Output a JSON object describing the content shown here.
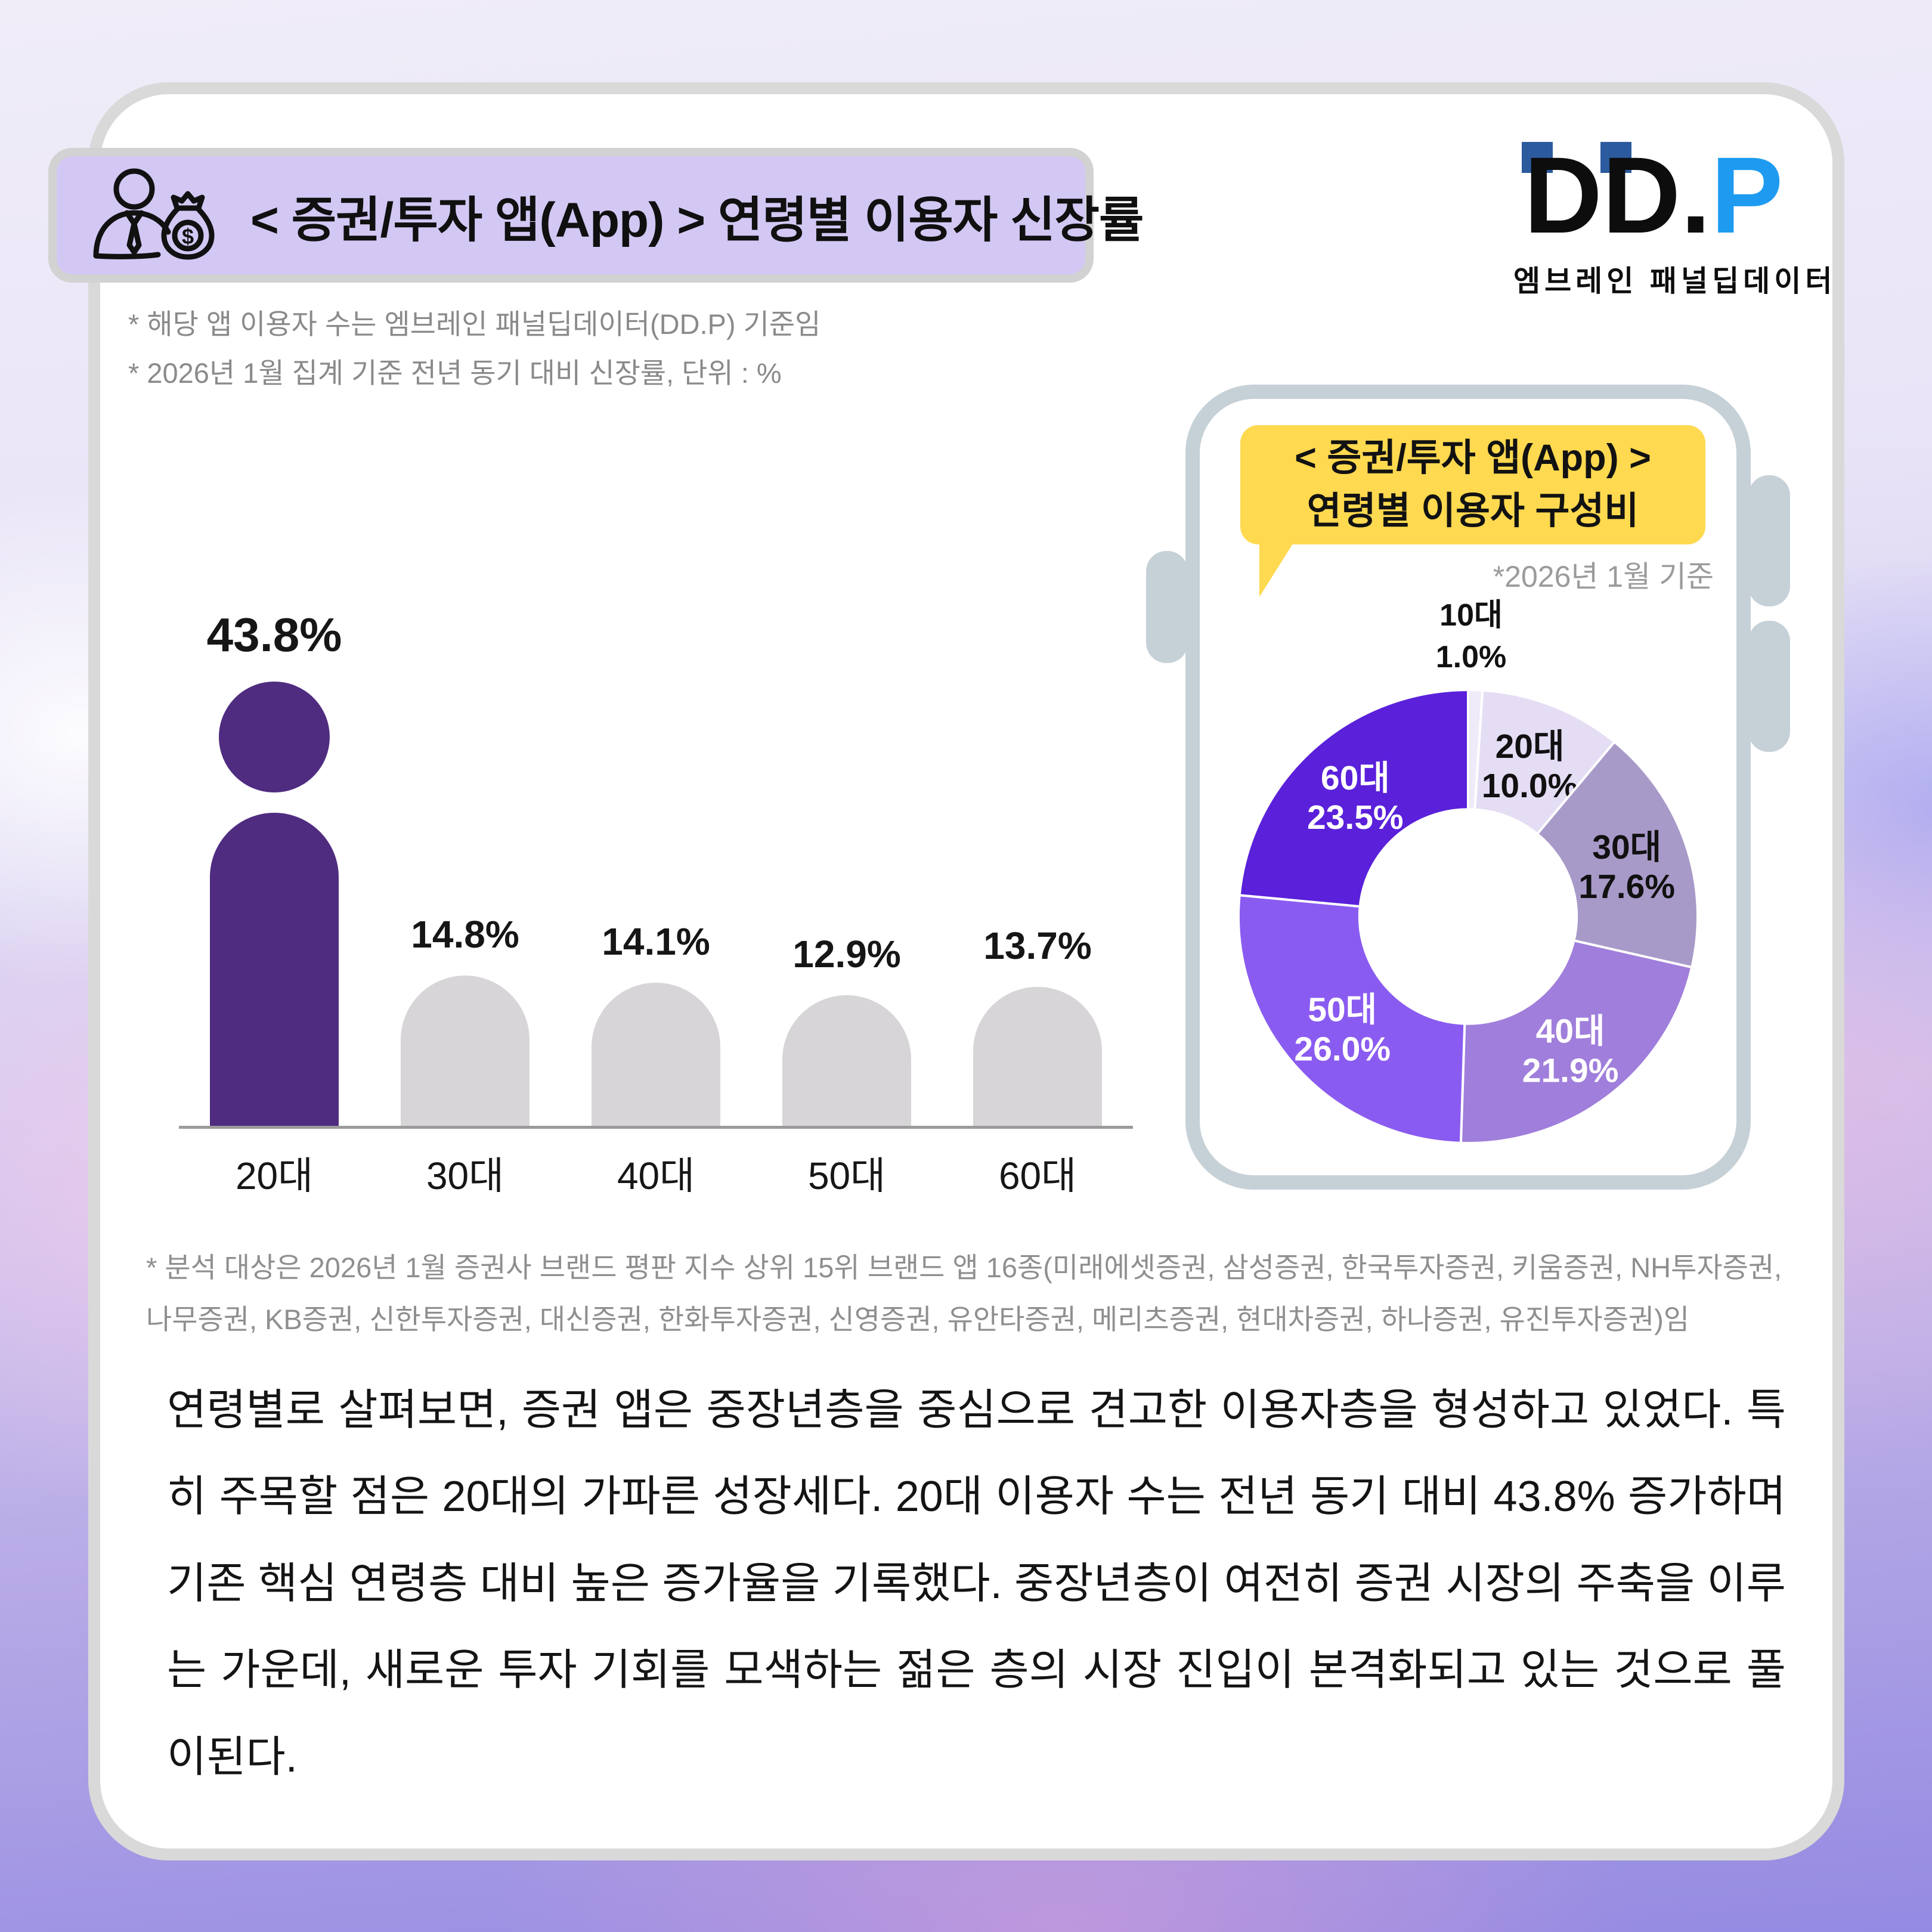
{
  "header": {
    "title": "< 증권/투자 앱(App) > 연령별 이용자 신장률",
    "icon": "businessman-moneybag-icon"
  },
  "logo": {
    "dd": "DD",
    "dot": ".",
    "p": "P",
    "tagline": "엠브레인 패널딥데이터",
    "navy_accent": "#2b5a9e",
    "blue_accent": "#1e9bf0"
  },
  "notes_top": {
    "line1": "* 해당 앱 이용자 수는 엠브레인 패널딥데이터(DD.P) 기준임",
    "line2": "* 2026년 1월 집계 기준 전년 동기 대비 신장률, 단위 : %"
  },
  "chart_data": [
    {
      "type": "bar",
      "title": "< 증권/투자 앱(App) > 연령별 이용자 신장률",
      "categories": [
        "20대",
        "30대",
        "40대",
        "50대",
        "60대"
      ],
      "values": [
        43.8,
        14.8,
        14.1,
        12.9,
        13.7
      ],
      "value_labels": [
        "43.8%",
        "14.8%",
        "14.1%",
        "12.9%",
        "13.7%"
      ],
      "unit": "%",
      "highlight_index": 0,
      "highlight_color": "#4f2c80",
      "bar_color": "#d7d5d7",
      "axis_color": "#9b9b9b",
      "ylim": [
        0,
        50
      ],
      "grid": "off",
      "legend": "none"
    },
    {
      "type": "pie",
      "title": "< 증권/투자 앱(App) > 연령별 이용자 구성비",
      "note": "*2026년 1월 기준",
      "categories": [
        "10대",
        "20대",
        "30대",
        "40대",
        "50대",
        "60대"
      ],
      "values": [
        1.0,
        10.0,
        17.6,
        21.9,
        26.0,
        23.5
      ],
      "value_labels": [
        "1.0%",
        "10.0%",
        "17.6%",
        "21.9%",
        "26.0%",
        "23.5%"
      ],
      "colors": [
        "#f0ebf9",
        "#e4ddf4",
        "#a89ac8",
        "#a07edb",
        "#8a5bf0",
        "#5a20da"
      ],
      "label_colors": [
        "#111111",
        "#111111",
        "#111111",
        "#ffffff",
        "#ffffff",
        "#ffffff"
      ],
      "donut_hole": 0.47,
      "start_angle_deg": 0,
      "direction": "clockwise",
      "legend": "none"
    }
  ],
  "bubble": {
    "line1": "<  증권/투자 앱(App) >",
    "line2": "연령별 이용자 구성비",
    "bg": "#ffd94f"
  },
  "notes_bottom": {
    "line1": "* 분석 대상은 2026년 1월 증권사 브랜드 평판 지수 상위 15위 브랜드 앱 16종(미래에셋증권, 삼성증권, 한국투자증권, 키움증권, NH투자증권,",
    "line2": "나무증권, KB증권, 신한투자증권, 대신증권, 한화투자증권, 신영증권, 유안타증권, 메리츠증권, 현대차증권, 하나증권, 유진투자증권)임"
  },
  "body_text": "연령별로 살펴보면, 증권 앱은 중장년층을 중심으로 견고한 이용자층을 형성하고 있었다. 특히 주목할 점은 20대의 가파른 성장세다. 20대 이용자 수는 전년 동기 대비 43.8% 증가하며 기존 핵심 연령층 대비 높은 증가율을 기록했다. 중장년층이 여전히 증권 시장의 주축을 이루는 가운데, 새로운 투자 기회를 모색하는 젊은 층의 시장 진입이 본격화되고 있는 것으로 풀이된다.",
  "colors": {
    "header_band": "#d3c8f4",
    "card_bg": "#ffffff",
    "card_ring": "#d9d9d9",
    "phone_frame": "#c6d0d7",
    "bubble_yellow": "#ffd94f",
    "highlight_purple": "#4f2c80",
    "gray_bar": "#d7d5d7"
  }
}
